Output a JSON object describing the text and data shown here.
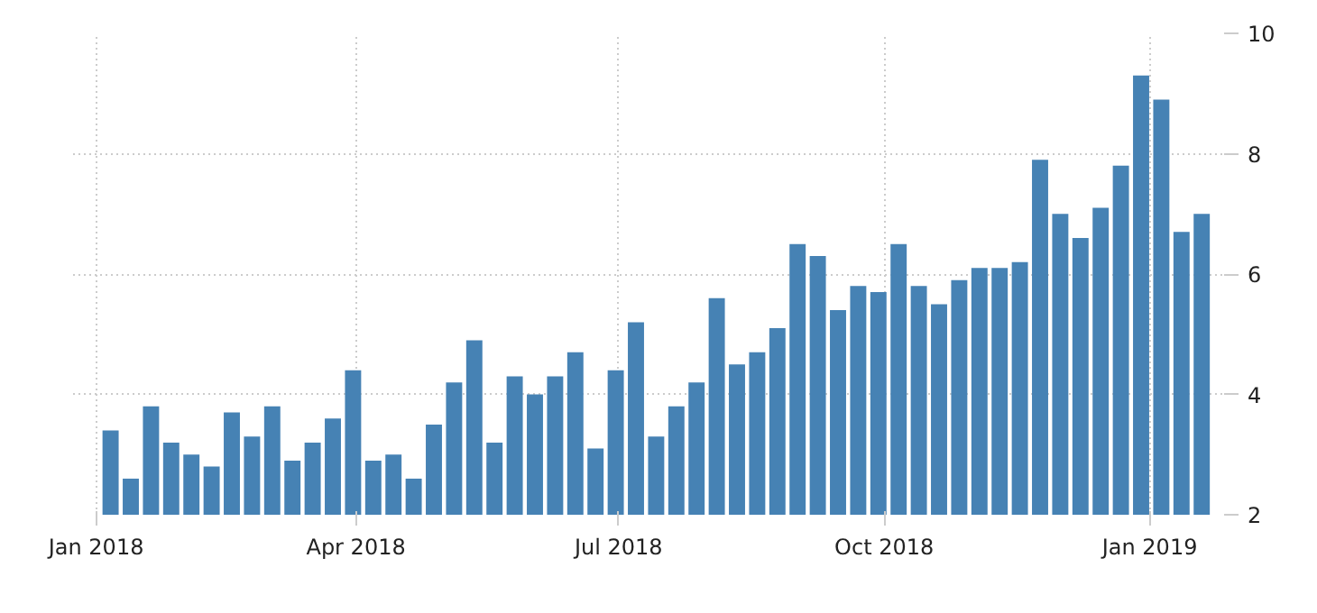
{
  "chart_data": {
    "type": "bar",
    "color": "#4682b4",
    "x": [
      "2018-01-06",
      "2018-01-13",
      "2018-01-20",
      "2018-01-27",
      "2018-02-03",
      "2018-02-10",
      "2018-02-17",
      "2018-02-24",
      "2018-03-03",
      "2018-03-10",
      "2018-03-17",
      "2018-03-24",
      "2018-03-31",
      "2018-04-07",
      "2018-04-14",
      "2018-04-21",
      "2018-04-28",
      "2018-05-05",
      "2018-05-12",
      "2018-05-19",
      "2018-05-26",
      "2018-06-02",
      "2018-06-09",
      "2018-06-16",
      "2018-06-23",
      "2018-06-30",
      "2018-07-07",
      "2018-07-14",
      "2018-07-21",
      "2018-07-28",
      "2018-08-04",
      "2018-08-11",
      "2018-08-18",
      "2018-08-25",
      "2018-09-01",
      "2018-09-08",
      "2018-09-15",
      "2018-09-22",
      "2018-09-29",
      "2018-10-06",
      "2018-10-13",
      "2018-10-20",
      "2018-10-27",
      "2018-11-03",
      "2018-11-10",
      "2018-11-17",
      "2018-11-24",
      "2018-12-01",
      "2018-12-08",
      "2018-12-15",
      "2018-12-22",
      "2018-12-29",
      "2019-01-05",
      "2019-01-12",
      "2019-01-19"
    ],
    "values": [
      3.4,
      2.6,
      3.8,
      3.2,
      3.0,
      2.8,
      3.7,
      3.3,
      3.8,
      2.9,
      3.2,
      3.6,
      4.4,
      2.9,
      3.0,
      2.6,
      3.5,
      4.2,
      4.9,
      3.2,
      4.3,
      4.0,
      4.3,
      4.7,
      3.1,
      4.4,
      5.2,
      3.3,
      3.8,
      4.2,
      5.6,
      4.5,
      4.7,
      5.1,
      6.5,
      6.3,
      5.4,
      5.8,
      5.7,
      6.5,
      5.8,
      5.5,
      5.9,
      6.1,
      6.1,
      6.2,
      7.9,
      7.0,
      6.6,
      7.1,
      7.8,
      9.3,
      8.9,
      6.7,
      7.0
    ],
    "xlim": [
      "2017-12-24",
      "2019-01-28"
    ],
    "xticks": [
      {
        "value": "2018-01-01",
        "label": "Jan 2018"
      },
      {
        "value": "2018-04-01",
        "label": "Apr 2018"
      },
      {
        "value": "2018-07-01",
        "label": "Jul 2018"
      },
      {
        "value": "2018-10-01",
        "label": "Oct 2018"
      },
      {
        "value": "2019-01-01",
        "label": "Jan 2019"
      }
    ],
    "ylim": [
      2,
      10
    ],
    "yticks": [
      2,
      4,
      6,
      8,
      10
    ],
    "grid": true
  }
}
